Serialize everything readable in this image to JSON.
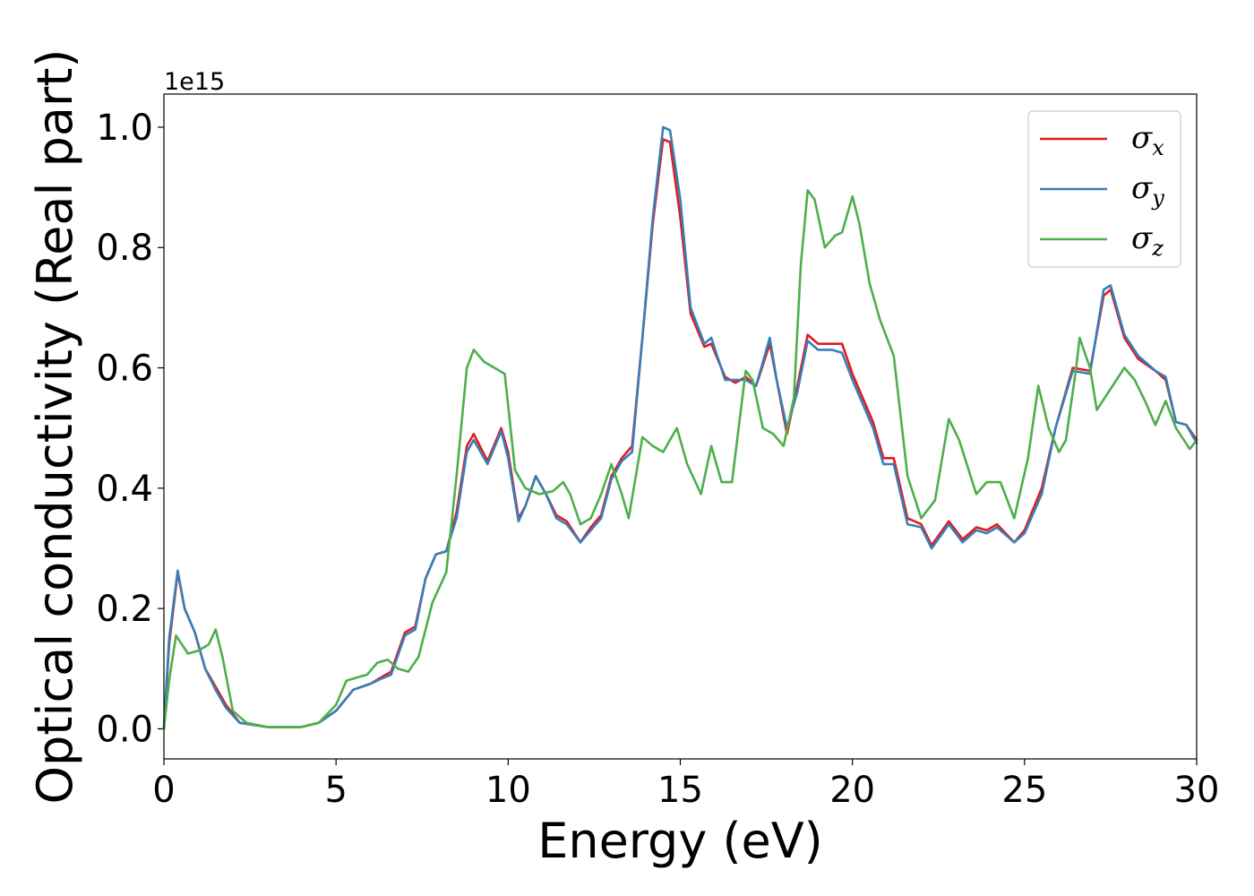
{
  "chart_data": {
    "type": "line",
    "xlabel": "Energy (eV)",
    "ylabel": "Optical conductivity (Real part)",
    "y_offset_label": "1e15",
    "xlim": [
      0,
      30
    ],
    "ylim": [
      -0.05,
      1.055
    ],
    "x_ticks": [
      0,
      5,
      10,
      15,
      20,
      25,
      30
    ],
    "x_tick_labels": [
      "0",
      "5",
      "10",
      "15",
      "20",
      "25",
      "30"
    ],
    "y_ticks": [
      0.0,
      0.2,
      0.4,
      0.6,
      0.8,
      1.0
    ],
    "y_tick_labels": [
      "0.0",
      "0.2",
      "0.4",
      "0.6",
      "0.8",
      "1.0"
    ],
    "grid": false,
    "legend_position": "top-right",
    "series": [
      {
        "name": "σ",
        "subscript": "x",
        "color": "#e41a1c",
        "points": [
          [
            0,
            0
          ],
          [
            0.15,
            0.14
          ],
          [
            0.4,
            0.26
          ],
          [
            0.6,
            0.2
          ],
          [
            0.9,
            0.16
          ],
          [
            1.2,
            0.1
          ],
          [
            1.5,
            0.07
          ],
          [
            1.8,
            0.04
          ],
          [
            2.2,
            0.01
          ],
          [
            3,
            0.003
          ],
          [
            4,
            0.003
          ],
          [
            4.5,
            0.01
          ],
          [
            5,
            0.03
          ],
          [
            5.5,
            0.065
          ],
          [
            6,
            0.075
          ],
          [
            6.3,
            0.085
          ],
          [
            6.6,
            0.095
          ],
          [
            7,
            0.16
          ],
          [
            7.3,
            0.17
          ],
          [
            7.6,
            0.25
          ],
          [
            7.9,
            0.29
          ],
          [
            8.2,
            0.295
          ],
          [
            8.5,
            0.36
          ],
          [
            8.8,
            0.47
          ],
          [
            9,
            0.49
          ],
          [
            9.4,
            0.445
          ],
          [
            9.8,
            0.5
          ],
          [
            10,
            0.46
          ],
          [
            10.3,
            0.35
          ],
          [
            10.5,
            0.37
          ],
          [
            10.8,
            0.42
          ],
          [
            11.1,
            0.39
          ],
          [
            11.4,
            0.355
          ],
          [
            11.7,
            0.345
          ],
          [
            12.1,
            0.31
          ],
          [
            12.4,
            0.335
          ],
          [
            12.7,
            0.355
          ],
          [
            13,
            0.42
          ],
          [
            13.3,
            0.45
          ],
          [
            13.6,
            0.47
          ],
          [
            13.9,
            0.65
          ],
          [
            14.2,
            0.84
          ],
          [
            14.5,
            0.98
          ],
          [
            14.7,
            0.975
          ],
          [
            15,
            0.85
          ],
          [
            15.3,
            0.69
          ],
          [
            15.7,
            0.635
          ],
          [
            15.9,
            0.64
          ],
          [
            16.3,
            0.585
          ],
          [
            16.6,
            0.575
          ],
          [
            16.9,
            0.585
          ],
          [
            17.2,
            0.57
          ],
          [
            17.6,
            0.64
          ],
          [
            17.8,
            0.58
          ],
          [
            18.1,
            0.49
          ],
          [
            18.4,
            0.57
          ],
          [
            18.7,
            0.655
          ],
          [
            19,
            0.64
          ],
          [
            19.4,
            0.64
          ],
          [
            19.7,
            0.64
          ],
          [
            20,
            0.59
          ],
          [
            20.3,
            0.55
          ],
          [
            20.6,
            0.51
          ],
          [
            20.9,
            0.45
          ],
          [
            21.2,
            0.45
          ],
          [
            21.6,
            0.35
          ],
          [
            22,
            0.34
          ],
          [
            22.3,
            0.305
          ],
          [
            22.8,
            0.345
          ],
          [
            23.2,
            0.315
          ],
          [
            23.6,
            0.335
          ],
          [
            23.9,
            0.33
          ],
          [
            24.2,
            0.34
          ],
          [
            24.7,
            0.31
          ],
          [
            25,
            0.33
          ],
          [
            25.5,
            0.4
          ],
          [
            25.9,
            0.5
          ],
          [
            26.4,
            0.6
          ],
          [
            26.9,
            0.595
          ],
          [
            27.3,
            0.72
          ],
          [
            27.5,
            0.73
          ],
          [
            27.9,
            0.65
          ],
          [
            28.3,
            0.615
          ],
          [
            28.8,
            0.595
          ],
          [
            29.1,
            0.58
          ],
          [
            29.4,
            0.51
          ],
          [
            29.7,
            0.505
          ],
          [
            30,
            0.48
          ]
        ]
      },
      {
        "name": "σ",
        "subscript": "y",
        "color": "#377eb8",
        "points": [
          [
            0,
            0
          ],
          [
            0.15,
            0.15
          ],
          [
            0.4,
            0.263
          ],
          [
            0.6,
            0.2
          ],
          [
            0.9,
            0.16
          ],
          [
            1.2,
            0.1
          ],
          [
            1.5,
            0.065
          ],
          [
            1.8,
            0.035
          ],
          [
            2.2,
            0.01
          ],
          [
            3,
            0.003
          ],
          [
            4,
            0.003
          ],
          [
            4.5,
            0.01
          ],
          [
            5,
            0.03
          ],
          [
            5.5,
            0.065
          ],
          [
            6,
            0.075
          ],
          [
            6.3,
            0.083
          ],
          [
            6.6,
            0.09
          ],
          [
            7,
            0.155
          ],
          [
            7.3,
            0.165
          ],
          [
            7.6,
            0.25
          ],
          [
            7.9,
            0.29
          ],
          [
            8.2,
            0.295
          ],
          [
            8.5,
            0.35
          ],
          [
            8.8,
            0.46
          ],
          [
            9,
            0.48
          ],
          [
            9.4,
            0.44
          ],
          [
            9.8,
            0.495
          ],
          [
            10,
            0.45
          ],
          [
            10.3,
            0.345
          ],
          [
            10.5,
            0.37
          ],
          [
            10.8,
            0.42
          ],
          [
            11.1,
            0.39
          ],
          [
            11.4,
            0.35
          ],
          [
            11.7,
            0.34
          ],
          [
            12.1,
            0.31
          ],
          [
            12.4,
            0.33
          ],
          [
            12.7,
            0.35
          ],
          [
            13,
            0.415
          ],
          [
            13.3,
            0.445
          ],
          [
            13.6,
            0.46
          ],
          [
            13.9,
            0.65
          ],
          [
            14.2,
            0.85
          ],
          [
            14.5,
            1.0
          ],
          [
            14.7,
            0.995
          ],
          [
            15,
            0.88
          ],
          [
            15.3,
            0.7
          ],
          [
            15.7,
            0.64
          ],
          [
            15.9,
            0.65
          ],
          [
            16.3,
            0.58
          ],
          [
            16.6,
            0.58
          ],
          [
            16.9,
            0.58
          ],
          [
            17.2,
            0.57
          ],
          [
            17.6,
            0.65
          ],
          [
            17.8,
            0.58
          ],
          [
            18.1,
            0.5
          ],
          [
            18.4,
            0.56
          ],
          [
            18.7,
            0.645
          ],
          [
            19,
            0.63
          ],
          [
            19.4,
            0.63
          ],
          [
            19.7,
            0.625
          ],
          [
            20,
            0.58
          ],
          [
            20.3,
            0.54
          ],
          [
            20.6,
            0.5
          ],
          [
            20.9,
            0.44
          ],
          [
            21.2,
            0.44
          ],
          [
            21.6,
            0.34
          ],
          [
            22,
            0.335
          ],
          [
            22.3,
            0.3
          ],
          [
            22.8,
            0.34
          ],
          [
            23.2,
            0.31
          ],
          [
            23.6,
            0.33
          ],
          [
            23.9,
            0.325
          ],
          [
            24.2,
            0.335
          ],
          [
            24.7,
            0.31
          ],
          [
            25,
            0.325
          ],
          [
            25.5,
            0.39
          ],
          [
            25.9,
            0.5
          ],
          [
            26.4,
            0.595
          ],
          [
            26.9,
            0.59
          ],
          [
            27.3,
            0.73
          ],
          [
            27.5,
            0.737
          ],
          [
            27.9,
            0.655
          ],
          [
            28.3,
            0.62
          ],
          [
            28.8,
            0.595
          ],
          [
            29.1,
            0.585
          ],
          [
            29.4,
            0.51
          ],
          [
            29.7,
            0.505
          ],
          [
            30,
            0.475
          ]
        ]
      },
      {
        "name": "σ",
        "subscript": "z",
        "color": "#4daf4a",
        "points": [
          [
            0,
            0
          ],
          [
            0.15,
            0.08
          ],
          [
            0.35,
            0.155
          ],
          [
            0.7,
            0.125
          ],
          [
            1.0,
            0.13
          ],
          [
            1.3,
            0.14
          ],
          [
            1.5,
            0.165
          ],
          [
            1.7,
            0.12
          ],
          [
            2.0,
            0.03
          ],
          [
            2.4,
            0.01
          ],
          [
            3,
            0.003
          ],
          [
            4,
            0.003
          ],
          [
            4.5,
            0.01
          ],
          [
            5,
            0.04
          ],
          [
            5.3,
            0.08
          ],
          [
            5.6,
            0.085
          ],
          [
            5.9,
            0.09
          ],
          [
            6.2,
            0.11
          ],
          [
            6.5,
            0.115
          ],
          [
            6.8,
            0.1
          ],
          [
            7.1,
            0.095
          ],
          [
            7.4,
            0.12
          ],
          [
            7.8,
            0.21
          ],
          [
            8.2,
            0.26
          ],
          [
            8.5,
            0.42
          ],
          [
            8.8,
            0.6
          ],
          [
            9,
            0.63
          ],
          [
            9.3,
            0.61
          ],
          [
            9.6,
            0.6
          ],
          [
            9.9,
            0.59
          ],
          [
            10.2,
            0.43
          ],
          [
            10.5,
            0.4
          ],
          [
            10.9,
            0.39
          ],
          [
            11.3,
            0.395
          ],
          [
            11.6,
            0.41
          ],
          [
            11.8,
            0.39
          ],
          [
            12.1,
            0.34
          ],
          [
            12.4,
            0.35
          ],
          [
            12.7,
            0.39
          ],
          [
            13,
            0.44
          ],
          [
            13.3,
            0.39
          ],
          [
            13.5,
            0.35
          ],
          [
            13.9,
            0.485
          ],
          [
            14.2,
            0.47
          ],
          [
            14.5,
            0.46
          ],
          [
            14.9,
            0.5
          ],
          [
            15.2,
            0.44
          ],
          [
            15.6,
            0.39
          ],
          [
            15.9,
            0.47
          ],
          [
            16.2,
            0.41
          ],
          [
            16.5,
            0.41
          ],
          [
            16.9,
            0.595
          ],
          [
            17.1,
            0.58
          ],
          [
            17.4,
            0.5
          ],
          [
            17.7,
            0.49
          ],
          [
            18,
            0.47
          ],
          [
            18.3,
            0.55
          ],
          [
            18.5,
            0.77
          ],
          [
            18.7,
            0.895
          ],
          [
            18.9,
            0.88
          ],
          [
            19.2,
            0.8
          ],
          [
            19.5,
            0.82
          ],
          [
            19.7,
            0.825
          ],
          [
            20,
            0.885
          ],
          [
            20.2,
            0.84
          ],
          [
            20.5,
            0.74
          ],
          [
            20.8,
            0.68
          ],
          [
            21.2,
            0.62
          ],
          [
            21.6,
            0.42
          ],
          [
            22,
            0.35
          ],
          [
            22.4,
            0.38
          ],
          [
            22.8,
            0.515
          ],
          [
            23.1,
            0.48
          ],
          [
            23.6,
            0.39
          ],
          [
            23.9,
            0.41
          ],
          [
            24.3,
            0.41
          ],
          [
            24.7,
            0.35
          ],
          [
            25.1,
            0.45
          ],
          [
            25.4,
            0.57
          ],
          [
            25.7,
            0.5
          ],
          [
            26,
            0.46
          ],
          [
            26.2,
            0.48
          ],
          [
            26.5,
            0.6
          ],
          [
            26.6,
            0.65
          ],
          [
            26.9,
            0.6
          ],
          [
            27.1,
            0.53
          ],
          [
            27.5,
            0.565
          ],
          [
            27.9,
            0.6
          ],
          [
            28.2,
            0.58
          ],
          [
            28.5,
            0.545
          ],
          [
            28.8,
            0.505
          ],
          [
            29.1,
            0.545
          ],
          [
            29.4,
            0.5
          ],
          [
            29.8,
            0.465
          ],
          [
            30,
            0.48
          ]
        ]
      }
    ]
  }
}
